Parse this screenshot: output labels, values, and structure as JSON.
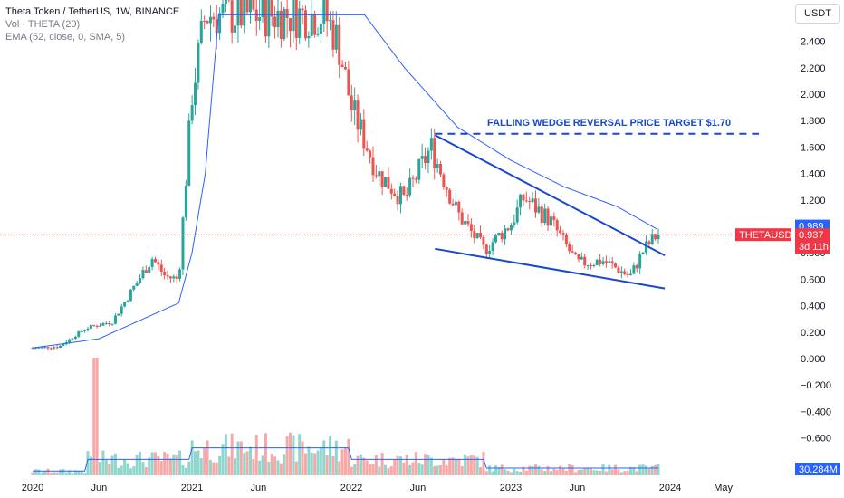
{
  "header": {
    "title": "Theta Token / TetherUS, 1W, BINANCE",
    "vol_label": "Vol · THETA (20)",
    "ema_label": "EMA (52, close, 0, SMA, 5)",
    "currency": "USDT"
  },
  "price_labels": {
    "symbol": "THETAUSDT",
    "price": "0.937",
    "countdown": "3d 11h",
    "high_tag": "0.989",
    "volume_tag": "30.284M"
  },
  "colors": {
    "up": "#26a69a",
    "down": "#ef5350",
    "ema": "#2962ff",
    "wedge": "#1848cc",
    "price_line": "#ef5350"
  },
  "chart_data": [
    {
      "type": "candlestick",
      "title": "",
      "annotation": "FALLING WEDGE REVERSAL PRICE TARGET $1.70",
      "y_ticks": [
        "2.400",
        "2.200",
        "2.000",
        "1.800",
        "1.600",
        "1.400",
        "1.200",
        "1.000",
        "0.800",
        "0.600",
        "0.400",
        "0.200",
        "0.000",
        "−0.200",
        "−0.400",
        "−0.600"
      ],
      "x_ticks": [
        "2020",
        "Jun",
        "2021",
        "Jun",
        "2022",
        "Jun",
        "2023",
        "Jun",
        "2024",
        "May"
      ],
      "ylim": [
        -0.8,
        2.6
      ],
      "current_price": 0.937,
      "target_price": 1.7,
      "wedge_upper": [
        [
          "2022-07",
          1.69
        ],
        [
          "2023-12",
          0.78
        ]
      ],
      "wedge_lower": [
        [
          "2022-07",
          0.83
        ],
        [
          "2023-12",
          0.53
        ]
      ],
      "close_series_monthly": [
        [
          "2020-01",
          0.08
        ],
        [
          "2020-03",
          0.09
        ],
        [
          "2020-05",
          0.23
        ],
        [
          "2020-07",
          0.28
        ],
        [
          "2020-09",
          0.6
        ],
        [
          "2020-10",
          0.76
        ],
        [
          "2020-11",
          0.62
        ],
        [
          "2020-12",
          0.6
        ],
        [
          "2021-01",
          2.0
        ],
        [
          "2021-02",
          2.6
        ],
        [
          "2021-11",
          2.6
        ],
        [
          "2021-12",
          2.4
        ],
        [
          "2022-01",
          1.9
        ],
        [
          "2022-03",
          1.4
        ],
        [
          "2022-05",
          1.2
        ],
        [
          "2022-07",
          1.6
        ],
        [
          "2022-09",
          1.1
        ],
        [
          "2022-11",
          0.82
        ],
        [
          "2023-01",
          1.02
        ],
        [
          "2023-02",
          1.22
        ],
        [
          "2023-04",
          1.04
        ],
        [
          "2023-06",
          0.72
        ],
        [
          "2023-08",
          0.74
        ],
        [
          "2023-10",
          0.62
        ],
        [
          "2023-11",
          0.82
        ],
        [
          "2023-12",
          0.937
        ]
      ],
      "ema_series_monthly": [
        [
          "2020-01",
          0.08
        ],
        [
          "2020-06",
          0.15
        ],
        [
          "2020-12",
          0.42
        ],
        [
          "2021-01",
          0.8
        ],
        [
          "2021-02",
          1.4
        ],
        [
          "2021-03",
          2.6
        ],
        [
          "2022-02",
          2.6
        ],
        [
          "2022-05",
          2.2
        ],
        [
          "2022-09",
          1.75
        ],
        [
          "2023-01",
          1.5
        ],
        [
          "2023-05",
          1.3
        ],
        [
          "2023-09",
          1.15
        ],
        [
          "2023-12",
          0.98
        ]
      ]
    }
  ]
}
